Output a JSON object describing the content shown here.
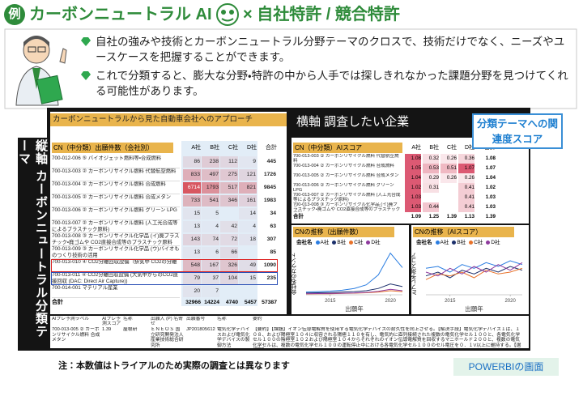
{
  "header": {
    "badge": "例",
    "title": "カーボンニュートラル AI",
    "subtitle": "× 自社特許 / 競合特許"
  },
  "bullets": [
    "自社の強みや技術とカーボンニュートラル分野テーマのクロスで、技術だけでなく、ニーズやユースケースを把握することができます。",
    "これで分類すると、膨大な分野・特許の中から人手では探しきれなかった課題分野を見つけてくれる可能性があります。"
  ],
  "dashboard": {
    "left_title": "カーボンニュートラルから見た自動車会社へのアプローチ",
    "right_title": "横軸 調査したい企業",
    "vertical_label": "縦軸 カーボンニュートラル分類テーマ",
    "callout": "分類テーマへの関連度スコア",
    "count_table": {
      "header": "CN（中分類）出願件数（会社別）",
      "columns": [
        "A社",
        "B社",
        "C社",
        "D社",
        "合計"
      ],
      "rows": [
        {
          "label": "700-012-006 ⑤ バイオジェット燃料等・合成燃料",
          "values": [
            86,
            238,
            112,
            9,
            445
          ]
        },
        {
          "label": "700-013-003 ② カーボンリサイクル燃料 代替航空燃料",
          "values": [
            833,
            497,
            275,
            121,
            1726
          ]
        },
        {
          "label": "700-013-004 ② カーボンリサイクル燃料 合成燃料",
          "values": [
            6714,
            1793,
            517,
            821,
            9845
          ]
        },
        {
          "label": "700-013-005 ② カーボンリサイクル燃料 合成メタン",
          "values": [
            733,
            541,
            346,
            161,
            1983
          ]
        },
        {
          "label": "700-013-006 ② カーボンリサイクル燃料 グリーン LPG",
          "values": [
            15,
            5,
            null,
            14,
            34
          ]
        },
        {
          "label": "700-013-007 ② カーボンリサイクル燃料 (人工光合成等によるプラスチック原料)",
          "values": [
            13,
            4,
            42,
            4,
            63
          ]
        },
        {
          "label": "700-013-008 ③ カーボンリサイクル化学品 (イ)廃プラスチック・廃ゴムや CO2直接合成等のプラスチック原料",
          "values": [
            143,
            74,
            72,
            18,
            307
          ]
        },
        {
          "label": "700-013-009 ③ カーボンリサイクル化学品 (ウ)バイオものつくり技術の活用",
          "values": [
            13,
            6,
            66,
            null,
            85
          ]
        },
        {
          "label": "700-013-010 ④ CO2分離回収設備（排気中 CO2の分離",
          "values": [
            548,
            167,
            326,
            49,
            1090
          ]
        },
        {
          "label": "700-013-011 ④ CO2分離回収設備 (大気中からのCO2直接回収 (DAC: Direct Air Capture))",
          "values": [
            79,
            37,
            104,
            15,
            235
          ]
        },
        {
          "label": "700-014-001 マテリアル産業",
          "values": [
            20,
            7,
            null,
            null,
            null
          ]
        }
      ],
      "total_label": "合計",
      "totals": [
        32966,
        14224,
        4740,
        5457,
        57387
      ]
    },
    "score_table": {
      "header": "CN（中分類）AIスコア",
      "columns": [
        "A社",
        "B社",
        "C社",
        "D社",
        "合計"
      ],
      "rows": [
        {
          "label": "700-013-003 ② カーボンリサイクル燃料 代替航空燃料",
          "values": [
            1.08,
            0.32,
            0.26,
            0.36,
            1.08
          ]
        },
        {
          "label": "700-013-004 ② カーボンリサイクル燃料 合成燃料",
          "values": [
            1.05,
            0.53,
            0.51,
            1.07,
            1.07
          ]
        },
        {
          "label": "700-013-005 ② カーボンリサイクル燃料 合成メタン",
          "values": [
            1.04,
            0.29,
            0.26,
            0.26,
            1.04
          ]
        },
        {
          "label": "700-013-006 ② カーボンリサイクル燃料 グリーン LPG",
          "values": [
            1.02,
            0.31,
            null,
            0.41,
            1.02
          ]
        },
        {
          "label": "700-013-007 ② カーボンリサイクル燃料 (人工光合成等によるプラスチック原料)",
          "values": [
            1.03,
            null,
            null,
            0.41,
            1.03
          ]
        },
        {
          "label": "700-013-008 ③ カーボンリサイクル化学品 (イ)廃プラスチック・廃ゴムや CO2直接合成等のプラスチック原料",
          "values": [
            1.03,
            0.44,
            null,
            0.41,
            1.03
          ]
        }
      ],
      "total_label": "合計",
      "totals": [
        1.09,
        1.25,
        1.39,
        1.13,
        1.39
      ]
    },
    "charts": [
      {
        "type": "line",
        "title": "CNの推移（出願件数）",
        "legend_title": "会社名",
        "x_label": "出願年",
        "y_label": "会社名のカウント",
        "x": [
          2013,
          2014,
          2015,
          2016,
          2017,
          2018,
          2019,
          2020,
          2021
        ],
        "xticks": [
          2015,
          2020
        ],
        "ylim": [
          0,
          5000
        ],
        "series": [
          {
            "name": "A社",
            "color": "#2a7de1",
            "values": [
              300,
              350,
              400,
              500,
              700,
              1100,
              2200,
              4600,
              3000
            ]
          },
          {
            "name": "B社",
            "color": "#1b2f6b",
            "values": [
              200,
              220,
              250,
              300,
              350,
              450,
              700,
              1200,
              900
            ]
          },
          {
            "name": "C社",
            "color": "#e8722a",
            "values": [
              100,
              110,
              120,
              150,
              180,
              220,
              300,
              450,
              350
            ]
          },
          {
            "name": "D社",
            "color": "#8e3a9d",
            "values": [
              120,
              130,
              140,
              170,
              200,
              260,
              380,
              600,
              450
            ]
          }
        ]
      },
      {
        "type": "line",
        "title": "CNの推移（AIスコア）",
        "legend_title": "会社名",
        "x_label": "出願年",
        "y_label": "AIプレ予測スコア",
        "x": [
          2013,
          2014,
          2015,
          2016,
          2017,
          2018,
          2019,
          2020,
          2021
        ],
        "xticks": [
          2015,
          2020
        ],
        "ylim": [
          0,
          1.2
        ],
        "series": [
          {
            "name": "A社",
            "color": "#2a7de1",
            "values": [
              0.7,
              0.75,
              0.6,
              0.8,
              0.7,
              0.85,
              0.75,
              0.9,
              0.8
            ]
          },
          {
            "name": "B社",
            "color": "#1b2f6b",
            "values": [
              0.5,
              0.6,
              0.45,
              0.65,
              0.55,
              0.7,
              0.6,
              0.75,
              0.65
            ]
          },
          {
            "name": "C社",
            "color": "#e8722a",
            "values": [
              0.4,
              0.55,
              0.5,
              0.6,
              0.45,
              0.65,
              0.55,
              0.6,
              0.7
            ]
          },
          {
            "name": "D社",
            "color": "#8e3a9d",
            "values": [
              0.6,
              0.5,
              0.7,
              0.55,
              0.75,
              0.6,
              0.8,
              0.65,
              0.85
            ]
          }
        ]
      }
    ],
    "detail_table": {
      "columns": [
        "AIプレ予測ラベル",
        "AIプレ予測スコア",
        "名称",
        "出願人 (P) 名寄せ",
        "出願番号",
        "名称",
        "要約"
      ],
      "rows": [
        [
          "700-013-005 ② カーボンリサイクル燃料 合成メタン",
          "1.39",
          "屋根研",
          "ＥＮＥＯＳ 国立研究開発法人産業技術総合研究所",
          "JP2018056124A",
          "電気化学デバイスおよび電気化学デバイスの製御方法",
          "【要約】【課題】イオン伝導電解質を使用する電気化学デバイスの耐久性を向上させる。【解決手段】電気化学デバイス１は、１０８、および陽極室１０４に収容される陽極１１０を有し、電気的に直列接続された複数の電気化学セル１００と、各電気化学セル１００の陰極室１０２および陽極室１０４からそれぞれのイオン伝導電解質を回収するマニホールド２００と、複数の電気化学セルは、複数の電気化学セル１００の運転停止中における各電気化学セル１００のセル電圧を０．１V以上に維持する。【選択図】"
        ]
      ]
    }
  },
  "footnote": "注：本数値はトライアルのため実際の調査とは異なります",
  "brand": "POWERBIの画面"
}
